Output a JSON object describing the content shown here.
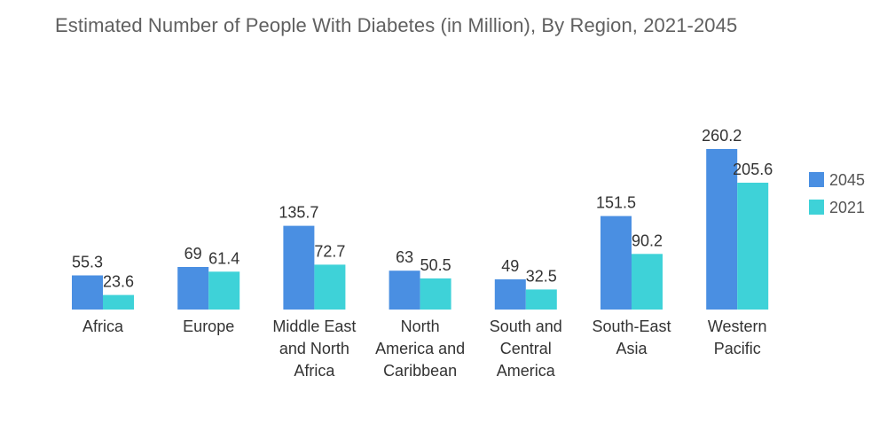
{
  "chart_data": {
    "type": "bar",
    "title": "Estimated Number of People With Diabetes (in Million), By Region, 2021-2045",
    "categories": [
      [
        "Africa"
      ],
      [
        "Europe"
      ],
      [
        "Middle East",
        "and North",
        "Africa"
      ],
      [
        "North",
        "America and",
        "Caribbean"
      ],
      [
        "South and",
        "Central",
        "America"
      ],
      [
        "South-East",
        "Asia"
      ],
      [
        "Western",
        "Pacific"
      ]
    ],
    "series": [
      {
        "name": "2045",
        "color": "#4a8fe2",
        "values": [
          55.3,
          69,
          135.7,
          63,
          49,
          151.5,
          260.2
        ]
      },
      {
        "name": "2021",
        "color": "#3ed2d8",
        "values": [
          23.6,
          61.4,
          72.7,
          50.5,
          32.5,
          90.2,
          205.6
        ]
      }
    ],
    "ylim": [
      0,
      260.2
    ],
    "grid": false,
    "legend_position": "right"
  }
}
